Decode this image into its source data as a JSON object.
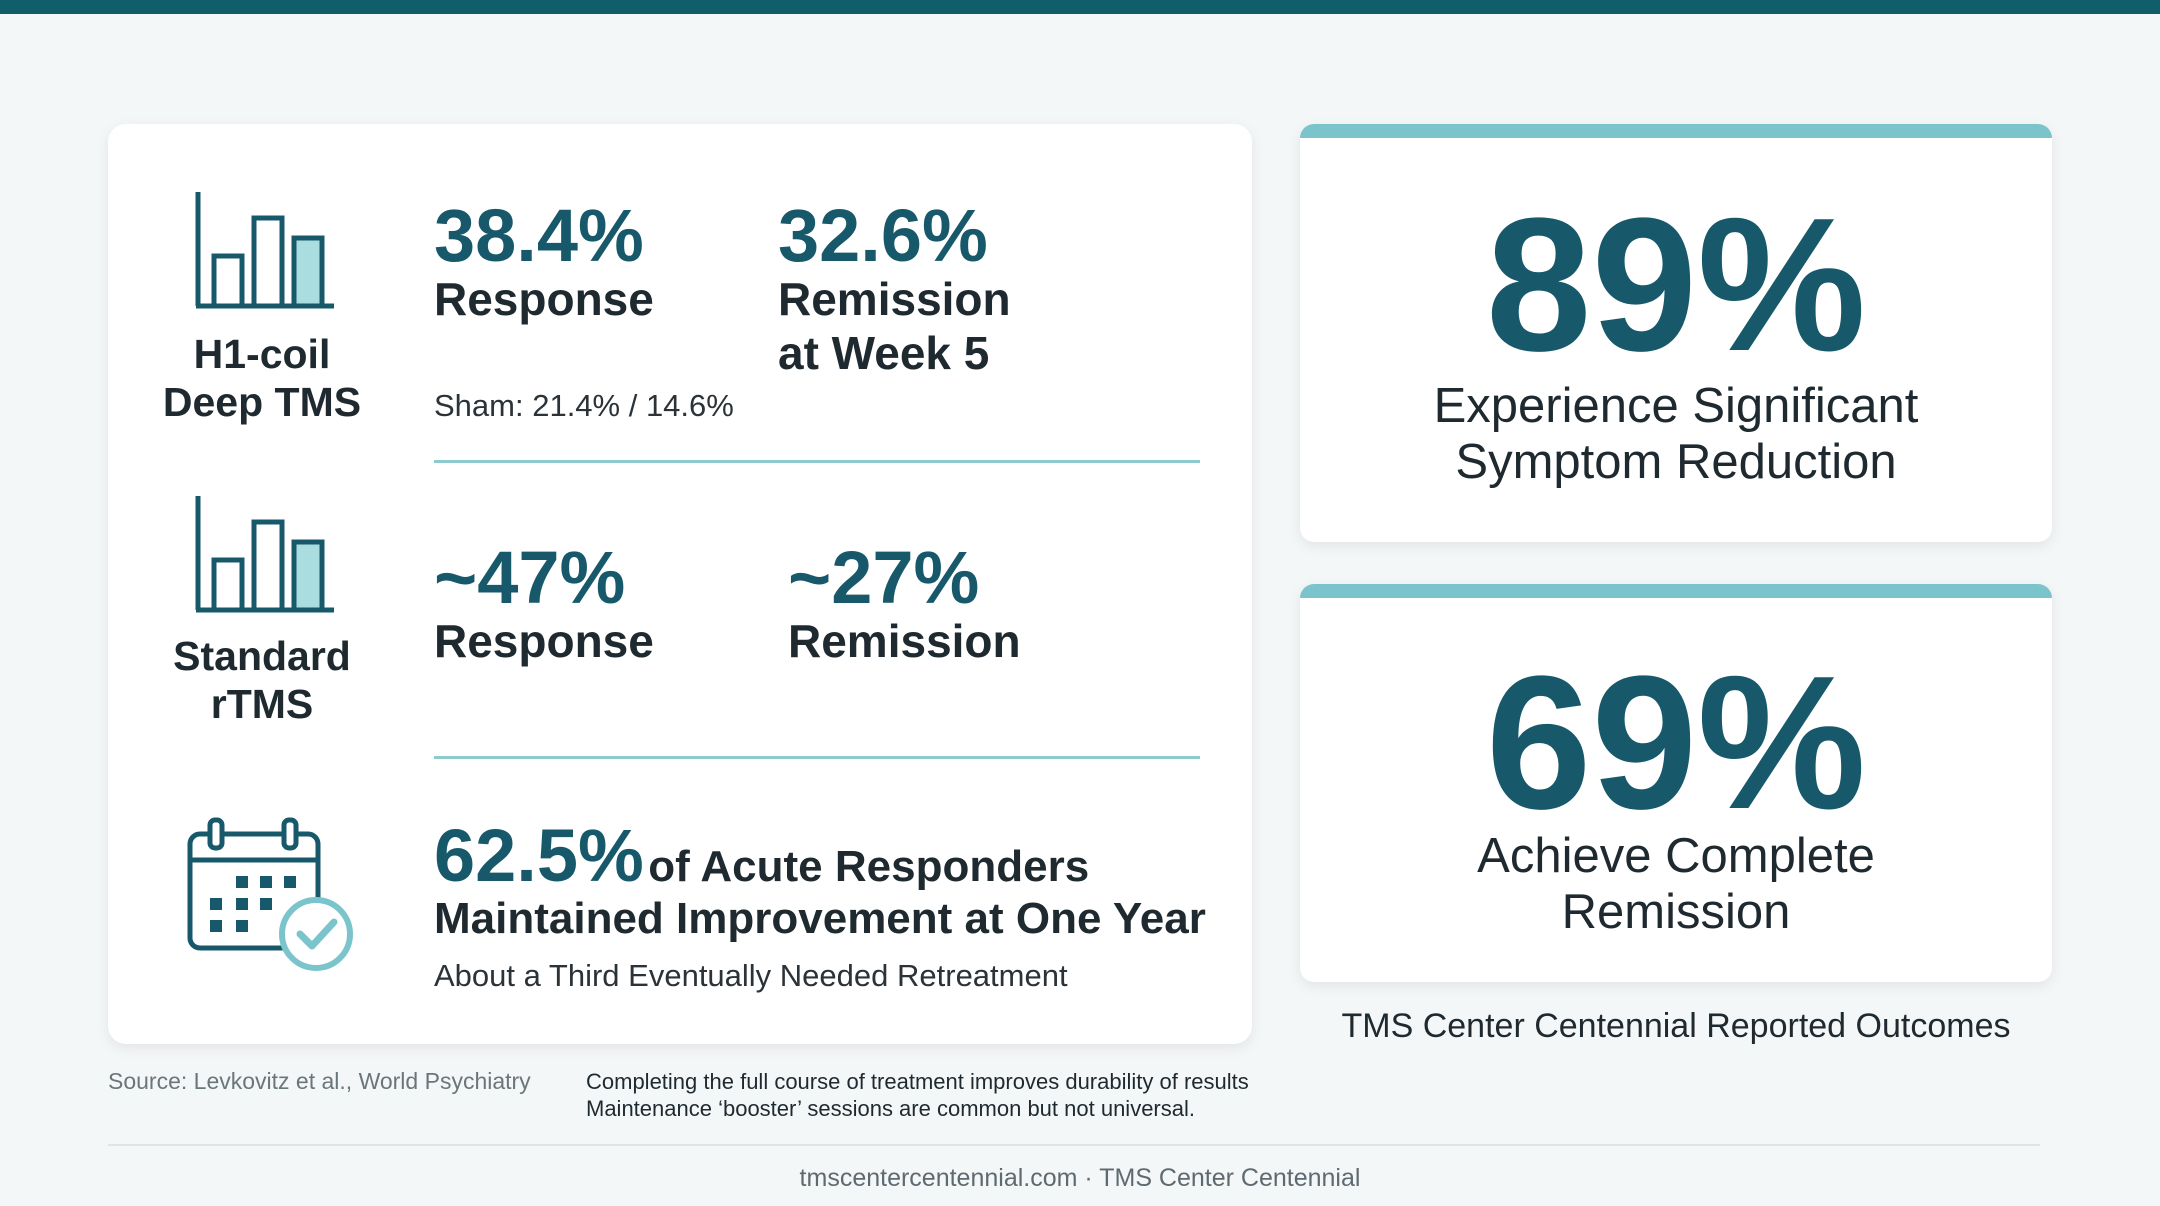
{
  "colors": {
    "primary": "#17596a",
    "accent": "#7cc4cc",
    "topbar": "#115e6b"
  },
  "h1_coil": {
    "icon": "bar-chart-icon",
    "label_line1": "H1-coil",
    "label_line2": "Deep TMS",
    "response_value": "38.4%",
    "response_label": "Response",
    "remission_value": "32.6%",
    "remission_label_line1": "Remission",
    "remission_label_line2": "at Week 5",
    "sham_note": "Sham: 21.4% / 14.6%"
  },
  "standard_rtms": {
    "icon": "bar-chart-icon",
    "label_line1": "Standard",
    "label_line2": "rTMS",
    "response_value": "~47%",
    "response_label": "Response",
    "remission_value": "~27%",
    "remission_label": "Remission"
  },
  "maintenance": {
    "icon": "calendar-check-icon",
    "value": "62.5%",
    "headline_rest": "of Acute Responders",
    "headline_line2": "Maintained Improvement at One Year",
    "subtext": "About a Third Eventually Needed Retreatment"
  },
  "outcome_cards": [
    {
      "value": "89%",
      "line1": "Experience Significant",
      "line2": "Symptom Reduction"
    },
    {
      "value": "69%",
      "line1": "Achieve Complete",
      "line2": "Remission"
    }
  ],
  "outcomes_caption": "TMS Center Centennial Reported Outcomes",
  "source": "Source: Levkovitz et al., World Psychiatry",
  "notes": [
    "Completing the full course of treatment improves durability of results",
    "Maintenance ‘booster’ sessions are common but not universal."
  ],
  "footer": "tmscentercentennial.com · TMS Center Centennial"
}
